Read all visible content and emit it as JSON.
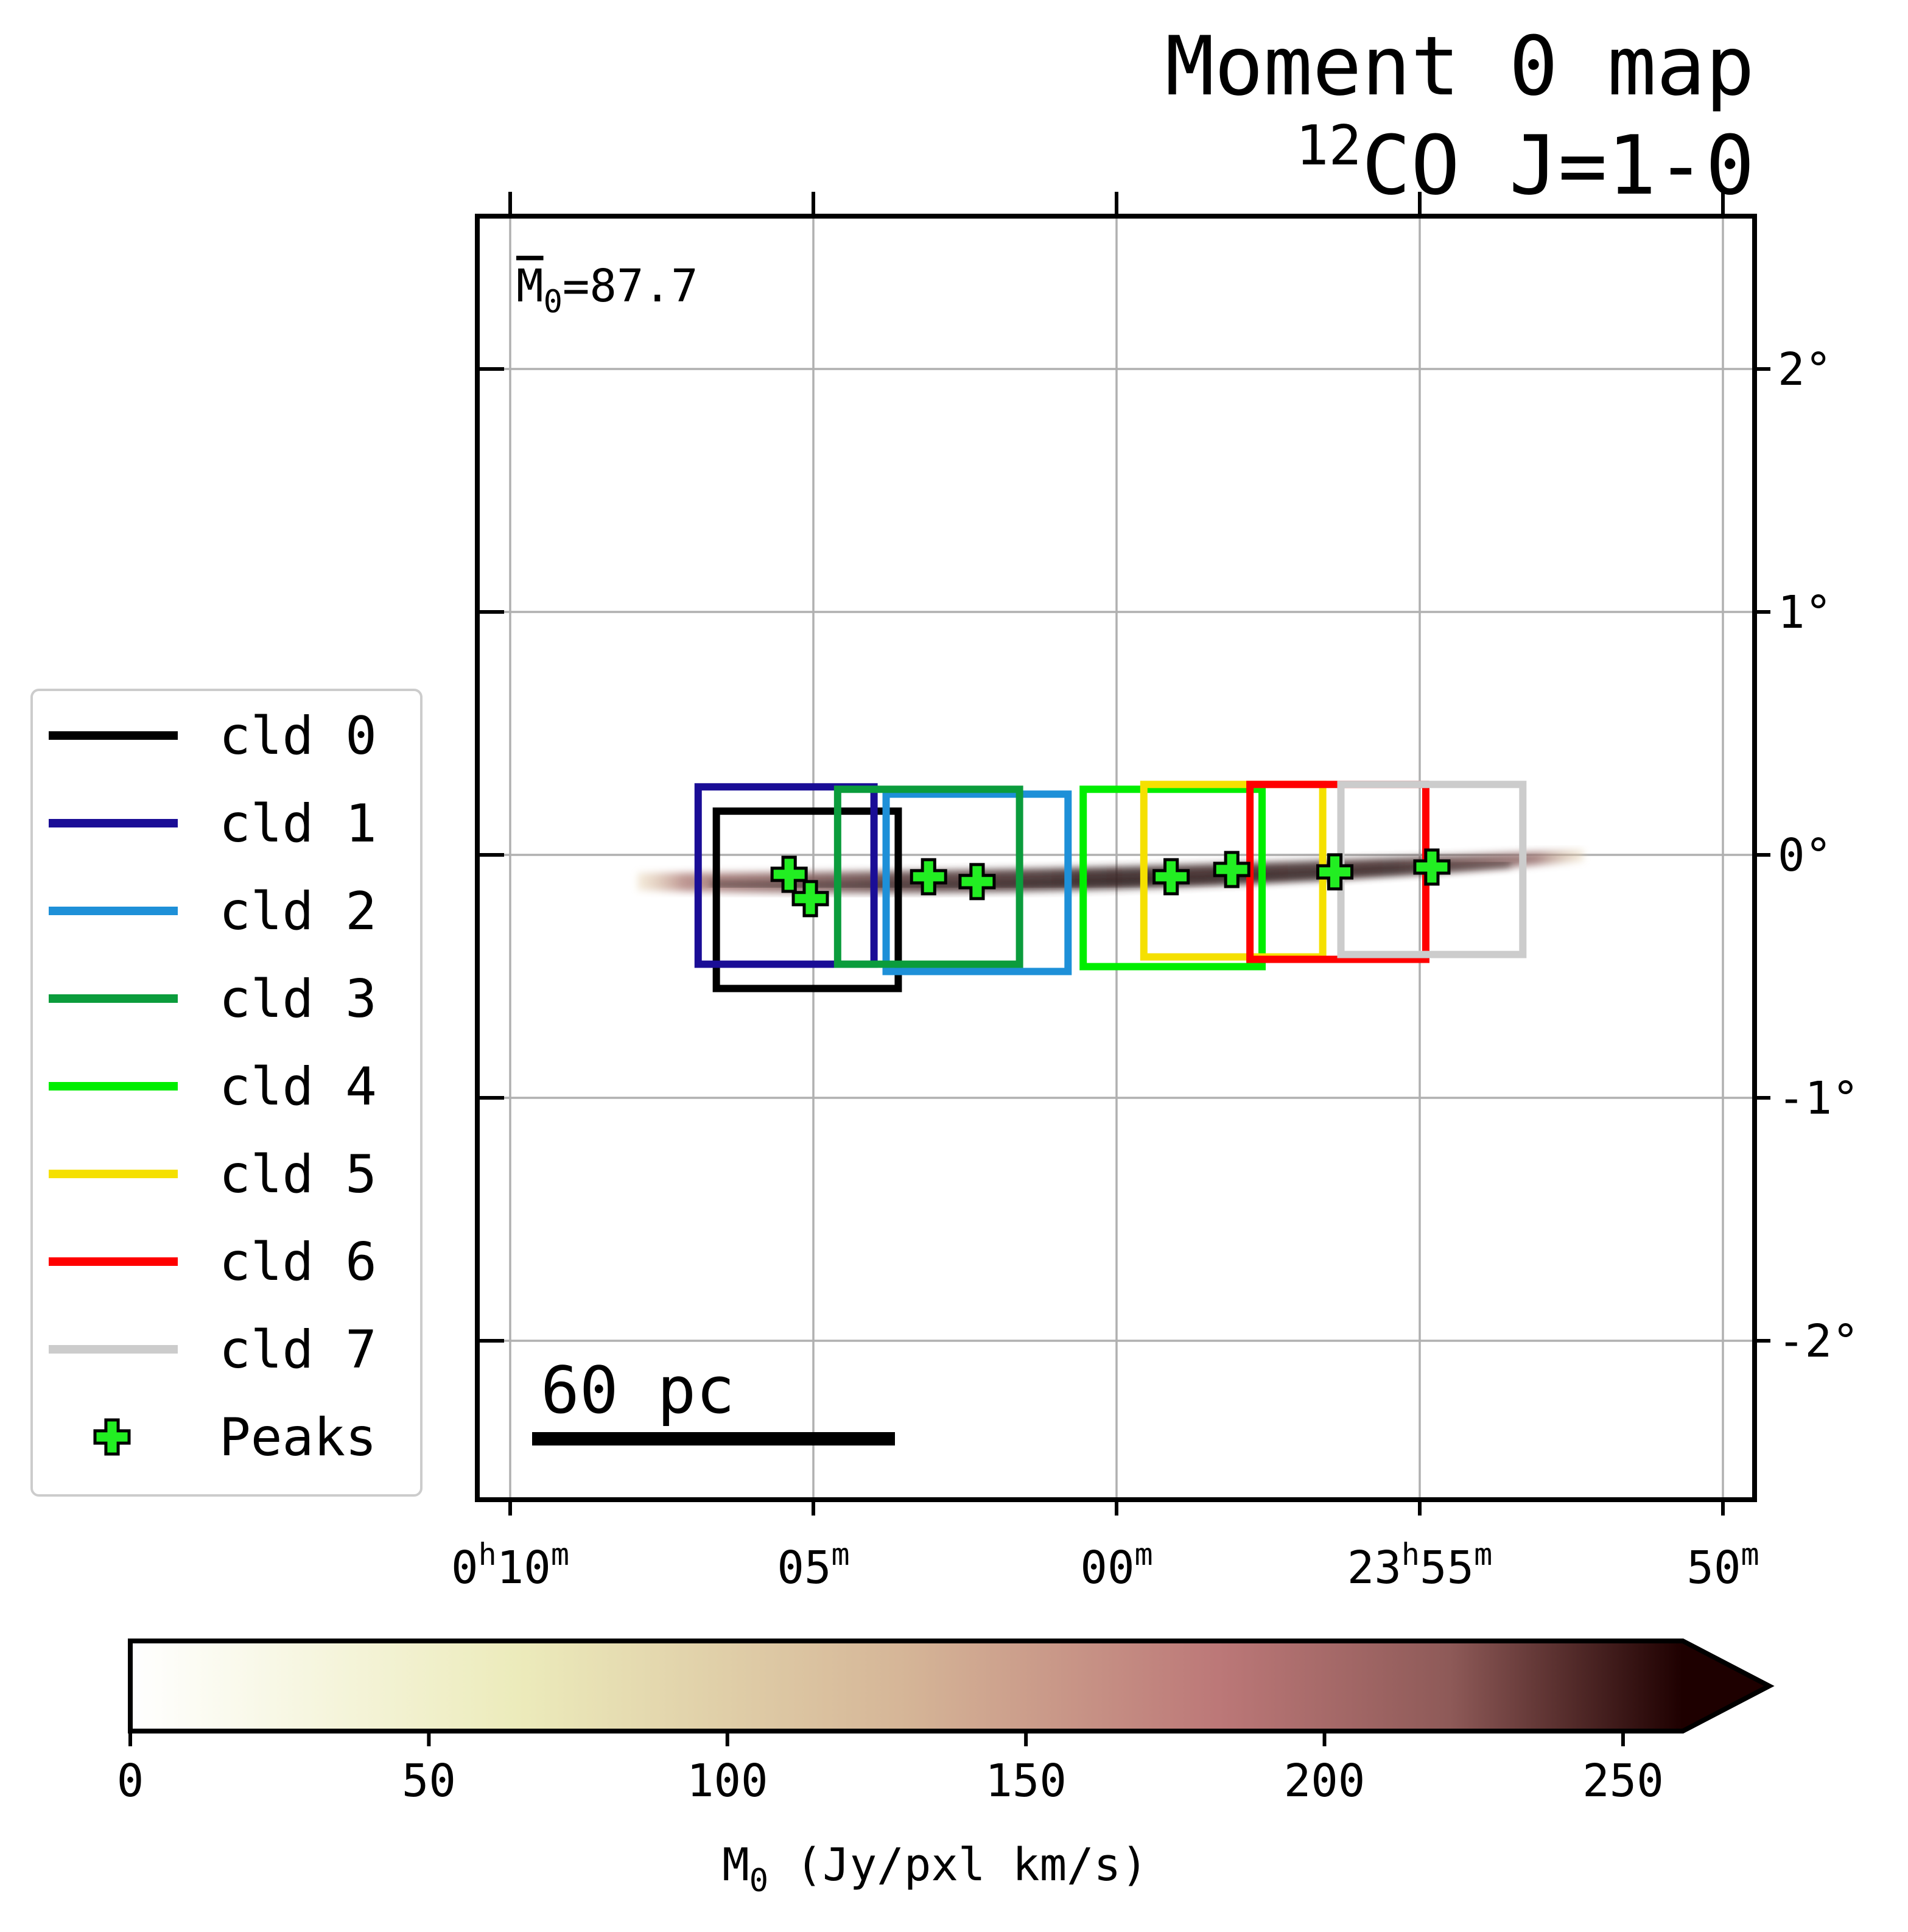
{
  "chart_data": {
    "type": "image",
    "title": "Moment 0 map",
    "subtitle_sup": "12",
    "subtitle_rest": "CO J=1-0",
    "mean_annotation": {
      "symbol": "M",
      "subscript": "0",
      "rest": "=87.7"
    },
    "scalebar_label": "60 pc",
    "x_axis": {
      "ticks": [
        {
          "ra_minutes": 10,
          "label_h": "0",
          "label_m": "10"
        },
        {
          "ra_minutes": 5,
          "label_h": "",
          "label_m": "05"
        },
        {
          "ra_minutes": 0,
          "label_h": "",
          "label_m": "00"
        },
        {
          "ra_minutes": -5,
          "label_h": "23",
          "label_m": "55"
        },
        {
          "ra_minutes": -10,
          "label_h": "",
          "label_m": "50"
        }
      ],
      "hour_sup": "h",
      "min_sup": "m"
    },
    "y_axis": {
      "ticks": [
        {
          "deg": 2,
          "label": "2°"
        },
        {
          "deg": 1,
          "label": "1°"
        },
        {
          "deg": 0,
          "label": "0°"
        },
        {
          "deg": -1,
          "label": "-1°"
        },
        {
          "deg": -2,
          "label": "-2°"
        }
      ]
    },
    "grid": true,
    "legend": {
      "placement": "left",
      "entries": [
        {
          "label": "cld 0",
          "color": "#000000"
        },
        {
          "label": "cld 1",
          "color": "#1a0d96"
        },
        {
          "label": "cld 2",
          "color": "#1e90d8"
        },
        {
          "label": "cld 3",
          "color": "#0b9c3c"
        },
        {
          "label": "cld 4",
          "color": "#00ee00"
        },
        {
          "label": "cld 5",
          "color": "#f5e000"
        },
        {
          "label": "cld 6",
          "color": "#ff0000"
        },
        {
          "label": "cld 7",
          "color": "#cccccc"
        },
        {
          "label": "Peaks",
          "color": "#22ee22",
          "marker": "plus"
        }
      ]
    },
    "clouds": [
      {
        "name": "cld 0",
        "color": "#000000",
        "ra_min": [
          6.6,
          3.6
        ],
        "dec": [
          -0.55,
          0.18
        ]
      },
      {
        "name": "cld 1",
        "color": "#1a0d96",
        "ra_min": [
          6.9,
          4.0
        ],
        "dec": [
          -0.45,
          0.28
        ]
      },
      {
        "name": "cld 2",
        "color": "#1e90d8",
        "ra_min": [
          3.8,
          0.8
        ],
        "dec": [
          -0.48,
          0.25
        ]
      },
      {
        "name": "cld 3",
        "color": "#0b9c3c",
        "ra_min": [
          4.6,
          1.6
        ],
        "dec": [
          -0.45,
          0.27
        ]
      },
      {
        "name": "cld 4",
        "color": "#00ee00",
        "ra_min": [
          0.55,
          -2.4
        ],
        "dec": [
          -0.46,
          0.27
        ]
      },
      {
        "name": "cld 5",
        "color": "#f5e000",
        "ra_min": [
          -0.45,
          -3.4
        ],
        "dec": [
          -0.42,
          0.29
        ]
      },
      {
        "name": "cld 6",
        "color": "#ff0000",
        "ra_min": [
          -2.2,
          -5.1
        ],
        "dec": [
          -0.43,
          0.29
        ]
      },
      {
        "name": "cld 7",
        "color": "#cccccc",
        "ra_min": [
          -3.7,
          -6.7
        ],
        "dec": [
          -0.41,
          0.29
        ]
      }
    ],
    "peaks": [
      {
        "ra_min": 5.4,
        "dec": -0.08
      },
      {
        "ra_min": 5.05,
        "dec": -0.18
      },
      {
        "ra_min": 3.1,
        "dec": -0.09
      },
      {
        "ra_min": 2.3,
        "dec": -0.11
      },
      {
        "ra_min": -0.9,
        "dec": -0.09
      },
      {
        "ra_min": -1.9,
        "dec": -0.06
      },
      {
        "ra_min": -3.6,
        "dec": -0.07
      },
      {
        "ra_min": -5.2,
        "dec": -0.05
      }
    ],
    "emission": {
      "ra_min": [
        7.9,
        -7.7
      ],
      "dec_center": -0.11,
      "dec_halfwidth": 0.06
    },
    "colorbar": {
      "label_sym": "M",
      "label_sub": "0",
      "label_rest": " (Jy/pxl km/s)",
      "ticks": [
        0,
        50,
        100,
        150,
        200,
        250
      ],
      "range": [
        0,
        260
      ],
      "extend": "max",
      "colormap": "pink_r"
    }
  }
}
